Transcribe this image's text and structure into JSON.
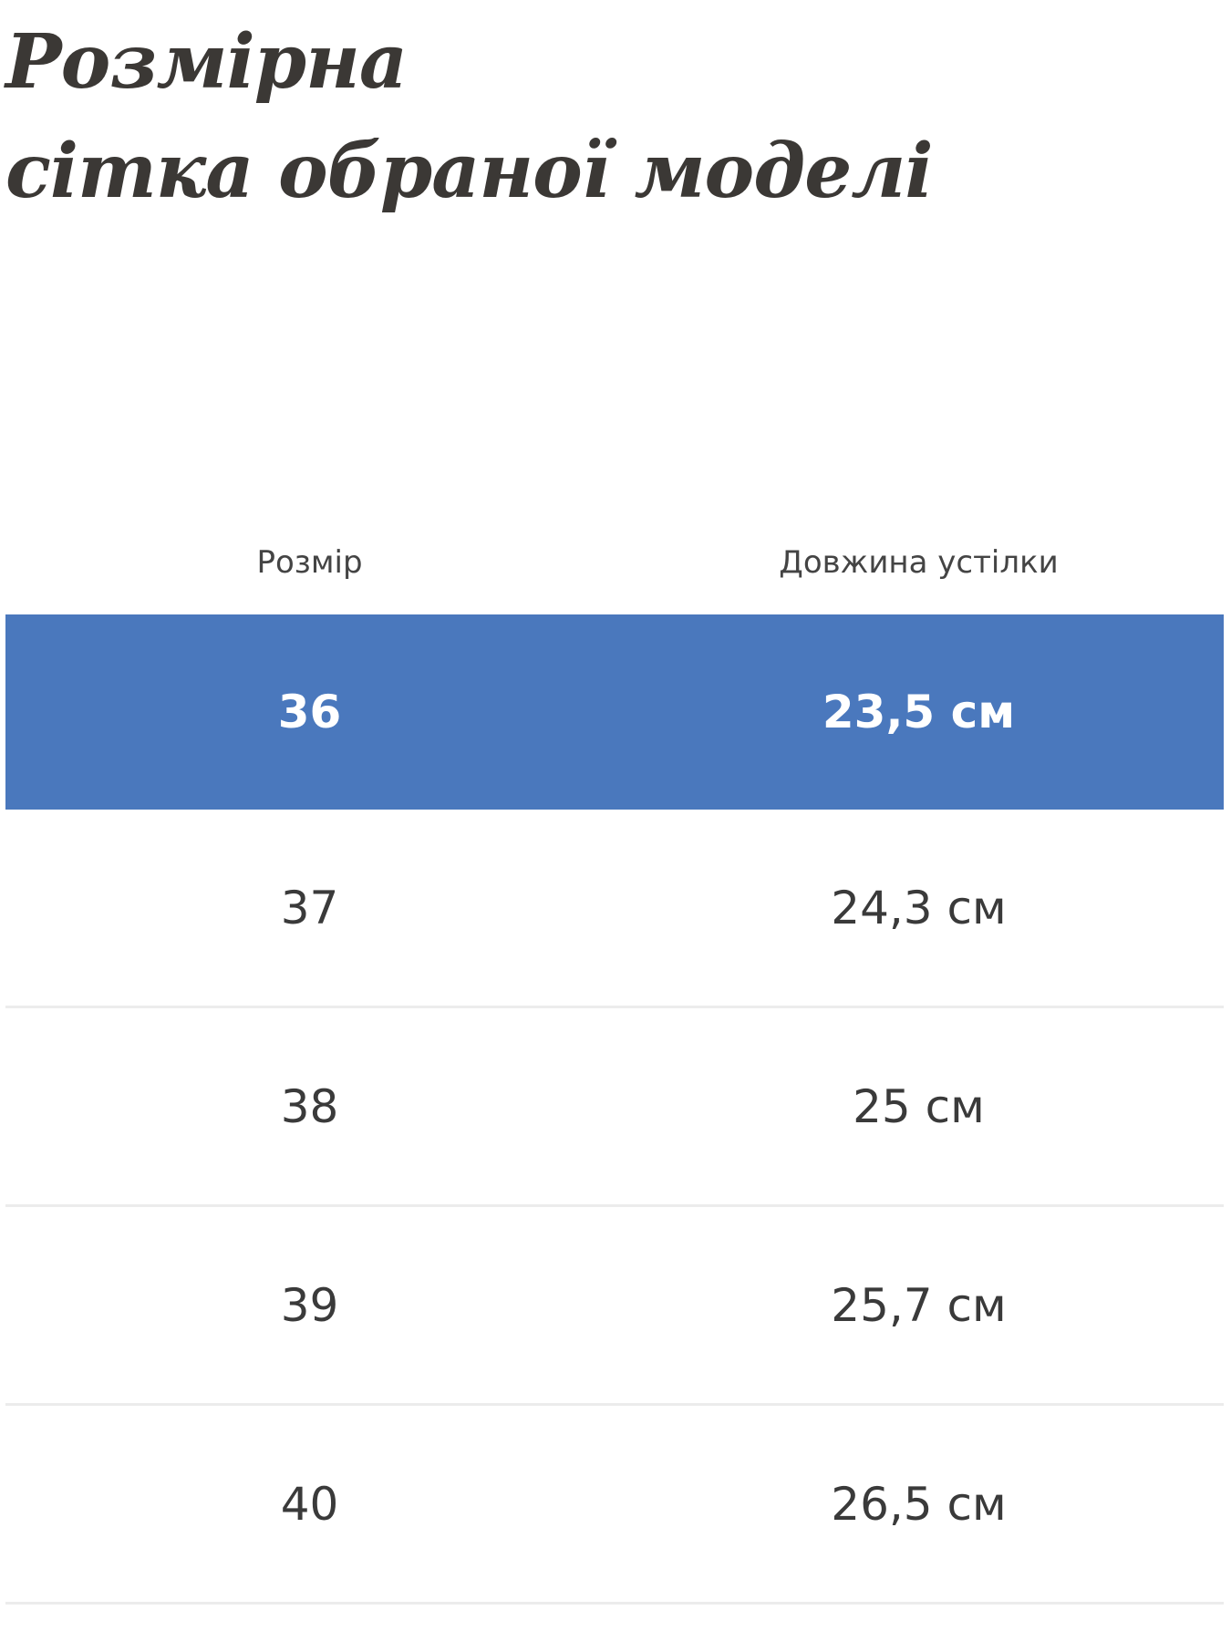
{
  "title": {
    "line1": "Розмірна",
    "line2": "сітка обраної моделі"
  },
  "table": {
    "headers": [
      "Розмір",
      "Довжина устілки"
    ],
    "rows": [
      {
        "size": "36",
        "length": "23,5 см",
        "selected": true
      },
      {
        "size": "37",
        "length": "24,3 см"
      },
      {
        "size": "38",
        "length": "25 см"
      },
      {
        "size": "39",
        "length": "25,7 см"
      },
      {
        "size": "40",
        "length": "26,5 см"
      }
    ]
  },
  "colors": {
    "selected_row": "#4a78bd",
    "divider": "#ececec"
  }
}
